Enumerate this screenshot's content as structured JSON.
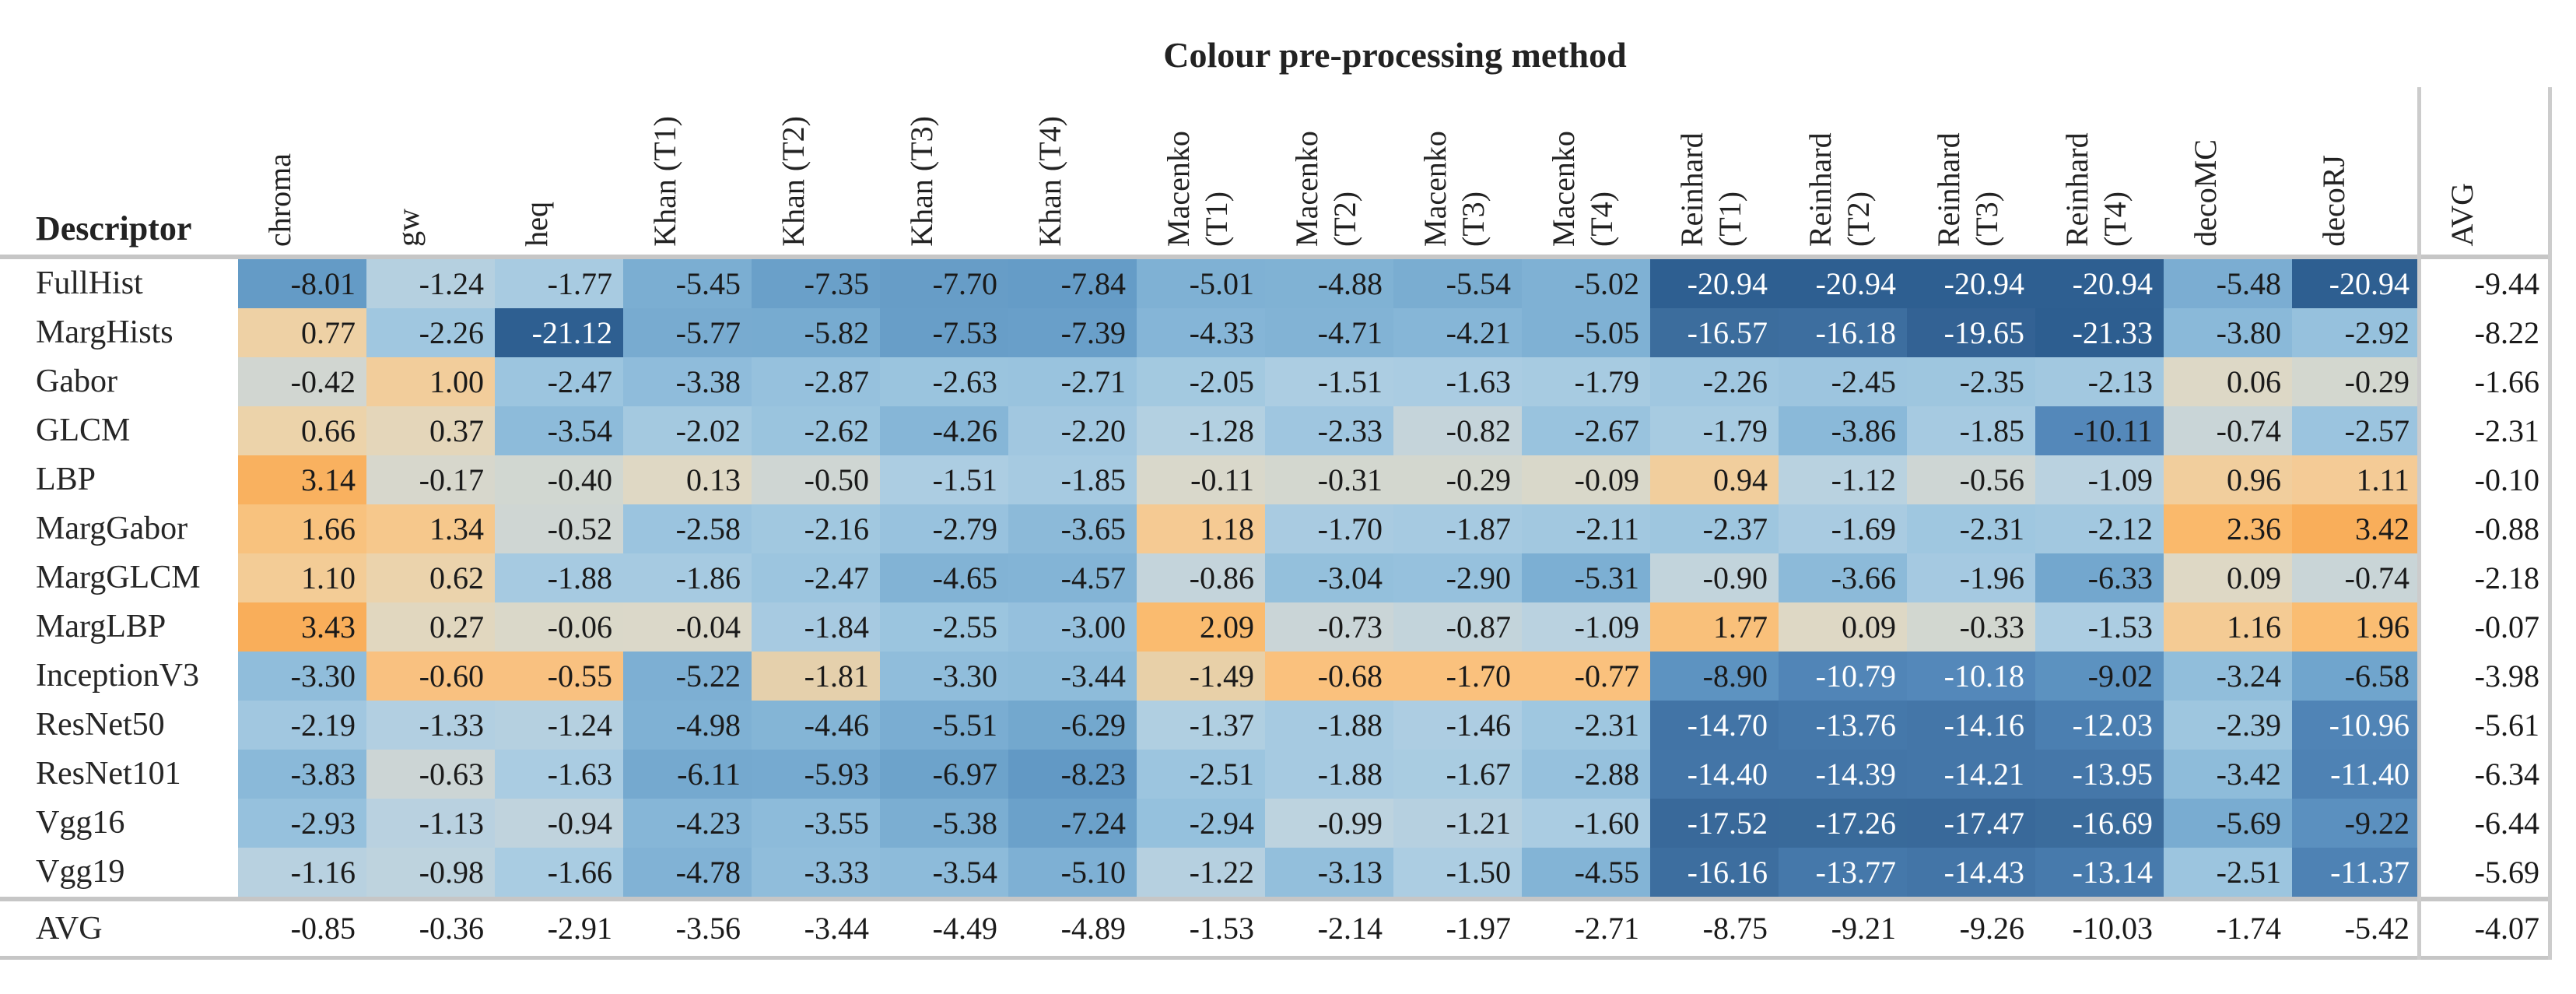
{
  "title": "Colour pre-processing method",
  "corner_label": "Descriptor",
  "avg_column_label": "AVG",
  "avg_row_label": "AVG",
  "chart_data": {
    "type": "heatmap",
    "title": "Colour pre-processing method",
    "row_header": "Descriptor",
    "columns": [
      "chroma",
      "gw",
      "heq",
      "Khan (T1)",
      "Khan (T2)",
      "Khan (T3)",
      "Khan (T4)",
      "Macenko (T1)",
      "Macenko (T2)",
      "Macenko (T3)",
      "Macenko (T4)",
      "Reinhard (T1)",
      "Reinhard (T2)",
      "Reinhard (T3)",
      "Reinhard (T4)",
      "decoMC",
      "decoRJ"
    ],
    "avg_column": "AVG",
    "rows": [
      {
        "label": "FullHist",
        "values": [
          -8.01,
          -1.24,
          -1.77,
          -5.45,
          -7.35,
          -7.7,
          -7.84,
          -5.01,
          -4.88,
          -5.54,
          -5.02,
          -20.94,
          -20.94,
          -20.94,
          -20.94,
          -5.48,
          -20.94
        ],
        "avg": -9.44
      },
      {
        "label": "MargHists",
        "values": [
          0.77,
          -2.26,
          -21.12,
          -5.77,
          -5.82,
          -7.53,
          -7.39,
          -4.33,
          -4.71,
          -4.21,
          -5.05,
          -16.57,
          -16.18,
          -19.65,
          -21.33,
          -3.8,
          -2.92
        ],
        "avg": -8.22
      },
      {
        "label": "Gabor",
        "values": [
          -0.42,
          1.0,
          -2.47,
          -3.38,
          -2.87,
          -2.63,
          -2.71,
          -2.05,
          -1.51,
          -1.63,
          -1.79,
          -2.26,
          -2.45,
          -2.35,
          -2.13,
          0.06,
          -0.29
        ],
        "avg": -1.66
      },
      {
        "label": "GLCM",
        "values": [
          0.66,
          0.37,
          -3.54,
          -2.02,
          -2.62,
          -4.26,
          -2.2,
          -1.28,
          -2.33,
          -0.82,
          -2.67,
          -1.79,
          -3.86,
          -1.85,
          -10.11,
          -0.74,
          -2.57
        ],
        "avg": -2.31
      },
      {
        "label": "LBP",
        "values": [
          3.14,
          -0.17,
          -0.4,
          0.13,
          -0.5,
          -1.51,
          -1.85,
          -0.11,
          -0.31,
          -0.29,
          -0.09,
          0.94,
          -1.12,
          -0.56,
          -1.09,
          0.96,
          1.11
        ],
        "avg": -0.1
      },
      {
        "label": "MargGabor",
        "values": [
          1.66,
          1.34,
          -0.52,
          -2.58,
          -2.16,
          -2.79,
          -3.65,
          1.18,
          -1.7,
          -1.87,
          -2.11,
          -2.37,
          -1.69,
          -2.31,
          -2.12,
          2.36,
          3.42
        ],
        "avg": -0.88
      },
      {
        "label": "MargGLCM",
        "values": [
          1.1,
          0.62,
          -1.88,
          -1.86,
          -2.47,
          -4.65,
          -4.57,
          -0.86,
          -3.04,
          -2.9,
          -5.31,
          -0.9,
          -3.66,
          -1.96,
          -6.33,
          0.09,
          -0.74
        ],
        "avg": -2.18
      },
      {
        "label": "MargLBP",
        "values": [
          3.43,
          0.27,
          -0.06,
          -0.04,
          -1.84,
          -2.55,
          -3.0,
          2.09,
          -0.73,
          -0.87,
          -1.09,
          1.77,
          0.09,
          -0.33,
          -1.53,
          1.16,
          1.96
        ],
        "avg": -0.07
      },
      {
        "label": "InceptionV3",
        "values": [
          -3.3,
          -0.6,
          -0.55,
          -5.22,
          -1.81,
          -3.3,
          -3.44,
          -1.49,
          -0.68,
          -1.7,
          -0.77,
          -8.9,
          -10.79,
          -10.18,
          -9.02,
          -3.24,
          -6.58
        ],
        "avg": -3.98
      },
      {
        "label": "ResNet50",
        "values": [
          -2.19,
          -1.33,
          -1.24,
          -4.98,
          -4.46,
          -5.51,
          -6.29,
          -1.37,
          -1.88,
          -1.46,
          -2.31,
          -14.7,
          -13.76,
          -14.16,
          -12.03,
          -2.39,
          -10.96
        ],
        "avg": -5.61
      },
      {
        "label": "ResNet101",
        "values": [
          -3.83,
          -0.63,
          -1.63,
          -6.11,
          -5.93,
          -6.97,
          -8.23,
          -2.51,
          -1.88,
          -1.67,
          -2.88,
          -14.4,
          -14.39,
          -14.21,
          -13.95,
          -3.42,
          -11.4
        ],
        "avg": -6.34
      },
      {
        "label": "Vgg16",
        "values": [
          -2.93,
          -1.13,
          -0.94,
          -4.23,
          -3.55,
          -5.38,
          -7.24,
          -2.94,
          -0.99,
          -1.21,
          -1.6,
          -17.52,
          -17.26,
          -17.47,
          -16.69,
          -5.69,
          -9.22
        ],
        "avg": -6.44
      },
      {
        "label": "Vgg19",
        "values": [
          -1.16,
          -0.98,
          -1.66,
          -4.78,
          -3.33,
          -3.54,
          -5.1,
          -1.22,
          -3.13,
          -1.5,
          -4.55,
          -16.16,
          -13.77,
          -14.43,
          -13.14,
          -2.51,
          -11.37
        ],
        "avg": -5.69
      }
    ],
    "avg_row": {
      "label": "AVG",
      "values": [
        -0.85,
        -0.36,
        -2.91,
        -3.56,
        -3.44,
        -4.49,
        -4.89,
        -1.53,
        -2.14,
        -1.97,
        -2.71,
        -8.75,
        -9.21,
        -9.26,
        -10.03,
        -1.74,
        -5.42
      ],
      "avg": -4.07
    },
    "legend": "diverging blue (negative) to orange (positive)",
    "color_anchors": [
      [
        -21.4,
        "#2D5E90"
      ],
      [
        -19.5,
        "#336294"
      ],
      [
        -17.0,
        "#3A6B9B"
      ],
      [
        -14.5,
        "#4375A7"
      ],
      [
        -12.0,
        "#4B7FB1"
      ],
      [
        -10.0,
        "#5589BB"
      ],
      [
        -8.0,
        "#649BC6"
      ],
      [
        -6.5,
        "#71A6CD"
      ],
      [
        -5.0,
        "#7FB1D4"
      ],
      [
        -3.5,
        "#8DBBDA"
      ],
      [
        -2.5,
        "#9CC5DF"
      ],
      [
        -1.5,
        "#ACCDE2"
      ],
      [
        -1.0,
        "#BDD3DF"
      ],
      [
        -0.7,
        "#CBD5D6"
      ],
      [
        -0.3,
        "#D3D7CF"
      ],
      [
        0.0,
        "#DCD8C8"
      ],
      [
        0.3,
        "#E2D7BE"
      ],
      [
        0.7,
        "#EDD2A8"
      ],
      [
        1.2,
        "#F5CA92"
      ],
      [
        2.0,
        "#FABC70"
      ],
      [
        3.45,
        "#F9AE5A"
      ]
    ],
    "cell_color_overrides": {
      "InceptionV3": {
        "1": "#F9C180",
        "2": "#F9C180",
        "4": "#E5D0AC",
        "7": "#E8D0A8",
        "8": "#FAC17D",
        "9": "#FAC17D",
        "10": "#FAC17D"
      }
    },
    "white_text_threshold": -10.15,
    "grid": false
  }
}
